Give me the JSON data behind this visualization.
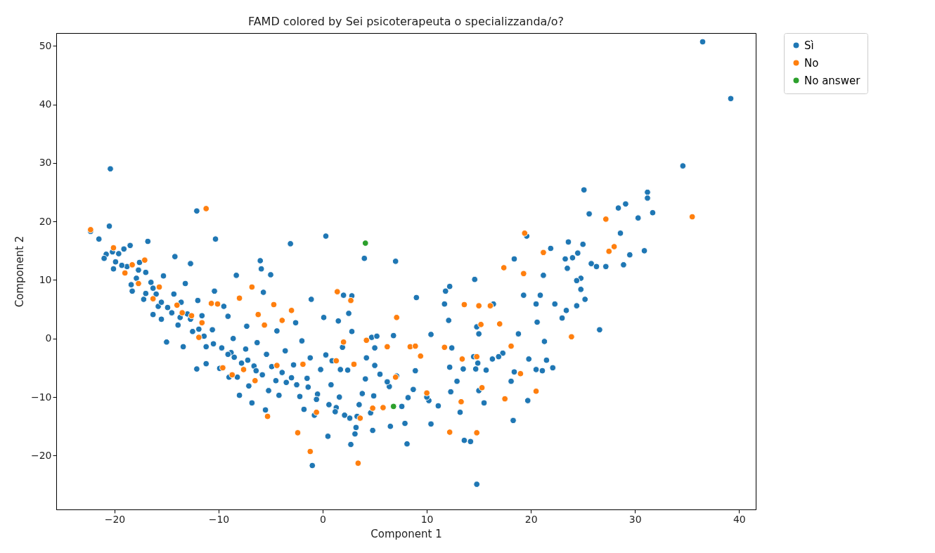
{
  "chart_data": {
    "type": "scatter",
    "title": "FAMD colored by Sei psicoterapeuta o specializzanda/o?",
    "xlabel": "Component 1",
    "ylabel": "Component 2",
    "xlim": [
      -25.6,
      41.6
    ],
    "ylim": [
      -29.2,
      52.2
    ],
    "xticks": [
      -20,
      -10,
      0,
      10,
      20,
      30,
      40
    ],
    "yticks": [
      -20,
      -10,
      0,
      10,
      20,
      30,
      40,
      50
    ],
    "grid": false,
    "legend": "top right",
    "marker": "circle",
    "series": [
      {
        "name": "Sì",
        "color": "#1f77b4",
        "x": [
          36.5,
          39.2,
          34.6,
          -20.4,
          31.7,
          31.2,
          31.2,
          30.3,
          29.5,
          29.1,
          28.4,
          28.6,
          28.9,
          30.9,
          25.1,
          25.6,
          25,
          25.8,
          26.3,
          26.6,
          27.2,
          24.5,
          24,
          23.6,
          23.5,
          24.8,
          23.3,
          24.4,
          24.8,
          25.2,
          24.4,
          23.4,
          23,
          22.3,
          21.9,
          21.2,
          20.9,
          20.5,
          20.6,
          21.3,
          21.5,
          20.5,
          22.1,
          21.1,
          19.8,
          19.6,
          18.4,
          18.8,
          18.4,
          19.3,
          19.7,
          18.1,
          18.3,
          17.3,
          16.4,
          16.9,
          16.3,
          15.7,
          15,
          15.5,
          14.8,
          14.6,
          14.8,
          15,
          14.5,
          14.9,
          14.7,
          14.2,
          13.6,
          13.5,
          12.9,
          13.2,
          12.2,
          11.8,
          11.7,
          12.1,
          12.4,
          12.2,
          12.3,
          11.1,
          10.2,
          10.4,
          10,
          10.4,
          9,
          8.9,
          8.7,
          8.2,
          8.1,
          7.9,
          7.6,
          7.1,
          7,
          6.8,
          6.5,
          6.4,
          6.2,
          5.5,
          5,
          5,
          4.9,
          4.6,
          4.8,
          4.7,
          5.2,
          4,
          4.2,
          4.1,
          3.8,
          3.5,
          3.3,
          3.2,
          3.1,
          2.8,
          2.4,
          2.5,
          2.8,
          2.6,
          2.7,
          2,
          1.9,
          1.7,
          1.6,
          1.3,
          1.5,
          0.3,
          0.9,
          0.8,
          0.3,
          0.5,
          0.1,
          -0.2,
          -0.5,
          -0.8,
          -1,
          -1.1,
          -1.2,
          -1.5,
          -1.8,
          -2,
          -2.2,
          -2.6,
          -2.8,
          -3.1,
          -3,
          -3.6,
          -3.9,
          -4.2,
          -4.4,
          -4.9,
          -5.2,
          -5.5,
          -5,
          -5.7,
          -5.4,
          -5.9,
          -6,
          -6.3,
          -6.6,
          -6.8,
          -7.1,
          -7.3,
          -7.4,
          -7.8,
          -8,
          -8.2,
          -8.3,
          -8.6,
          -8.8,
          -9.1,
          -9,
          -9.5,
          -9.9,
          -10.3,
          -10.4,
          -10.6,
          -11.2,
          -11.2,
          -11.6,
          -12,
          -12.1,
          -12.1,
          -12.7,
          -12.5,
          -13,
          -13.2,
          -13.4,
          -13.6,
          -13.9,
          -14.2,
          -14.3,
          -14.5,
          -15,
          -15.3,
          -15.5,
          -15.8,
          -16,
          -16.3,
          -16.5,
          -16.8,
          -17,
          -17.2,
          -17.6,
          -17.9,
          -18.3,
          -18.5,
          -18.8,
          -19.1,
          -19.6,
          -19.9,
          -20.1,
          -20.5,
          -20.8,
          -21.5,
          -21,
          -22.3,
          -20.2,
          -19.3,
          -18.4,
          -17.7,
          -17,
          -16.3,
          -15.5,
          -14.9,
          -13.7,
          -12.7,
          -11.9,
          -11.4,
          -10.5,
          -9.7,
          -9.1,
          -8.5,
          -7.2,
          -6.4,
          -5.8,
          -4.5,
          -3.5,
          -2.5,
          -1.4,
          -0.6,
          0.6,
          1.2,
          2.1
        ],
        "values": [
          50.7,
          41,
          29.5,
          29,
          21.5,
          25,
          24,
          20.6,
          14.3,
          23,
          22.3,
          18,
          12.6,
          15,
          25.4,
          21.3,
          16.1,
          12.8,
          12.3,
          1.5,
          12.3,
          14.6,
          13.8,
          16.5,
          12,
          10.3,
          13.6,
          9.9,
          8.4,
          6.7,
          5.6,
          4.8,
          3.5,
          5.9,
          15.4,
          10.8,
          7.4,
          5.9,
          2.8,
          -0.5,
          -3.7,
          -5.3,
          -5,
          -5.5,
          -3.5,
          17.5,
          13.6,
          0.8,
          -5.7,
          7.4,
          -10.6,
          -7.3,
          -14,
          -2.5,
          5.9,
          -3.1,
          -3.5,
          -5.4,
          -8.9,
          -11,
          -24.9,
          10.1,
          2,
          0.8,
          -3.1,
          -4.2,
          -5.2,
          -17.6,
          -17.4,
          -5.2,
          -7.3,
          -12.6,
          8.9,
          8.1,
          5.9,
          3.1,
          -1.6,
          -4.9,
          -9.1,
          -11.5,
          -10.6,
          0.7,
          -10,
          -14.6,
          7,
          -5.5,
          -8.7,
          -10.1,
          -18,
          -14.5,
          -11.6,
          -6.4,
          13.2,
          0.5,
          -15,
          -8.2,
          -7.4,
          -6.1,
          -1.6,
          -4.6,
          -9.8,
          -12.7,
          -15.7,
          0.2,
          0.4,
          13.7,
          -3.3,
          -6.9,
          -9.4,
          -11.3,
          -13.3,
          -15.2,
          -16.3,
          1.2,
          -5.4,
          4.3,
          7.3,
          -13.6,
          -18.1,
          7.4,
          -1.5,
          -5.3,
          -10,
          -11.8,
          3,
          17.5,
          -3.8,
          -7.9,
          -2.8,
          -16.7,
          3.6,
          -5.3,
          -9.5,
          -13.1,
          -21.7,
          6.7,
          -3.3,
          -6.8,
          -12.1,
          -0.4,
          -9.9,
          2.7,
          -4.5,
          16.2,
          -6.7,
          -2.1,
          -5.8,
          -9.7,
          1.3,
          -4.8,
          -8.9,
          -12.2,
          10.9,
          7.9,
          -2.7,
          11.9,
          13.3,
          -0.7,
          -4.7,
          -11,
          -8.1,
          2.1,
          -1.8,
          -4.2,
          -9.7,
          -6.6,
          10.8,
          0,
          -2.4,
          3.8,
          -6.6,
          5.5,
          -5.1,
          17,
          8.1,
          1.5,
          -1.4,
          -4.3,
          3.9,
          6.5,
          21.8,
          -5.2,
          12.8,
          1.2,
          4.2,
          9.4,
          -1.4,
          6.2,
          2.3,
          14,
          7.6,
          4.4,
          -0.6,
          10.7,
          3.3,
          5.5,
          7.6,
          4.1,
          9.6,
          16.6,
          11.3,
          6.7,
          13,
          10.3,
          8.1,
          15.9,
          12.3,
          15.3,
          14.5,
          13.1,
          11.9,
          19.2,
          14.4,
          17,
          13.7,
          18.3,
          14.8,
          12.5,
          9.2,
          11.7,
          7.7,
          8.6,
          6.2,
          5.3,
          3.6,
          3.3,
          1.6,
          0.4,
          -0.9,
          -1.6,
          -2.7,
          -3.2,
          -3.7,
          -5.5,
          -6.2,
          -7.2,
          -7.5,
          -7.9,
          -8.3,
          -10.4,
          -11.3,
          -12.5,
          -13.1
        ]
      },
      {
        "name": "No",
        "color": "#ff7f0e",
        "x": [
          -22.3,
          -20.1,
          -19,
          -18.3,
          -17.7,
          -17.1,
          -16.3,
          -15.7,
          -14,
          -13.5,
          -12.6,
          -11.9,
          -11.6,
          -11.2,
          -10.7,
          -10.1,
          -9.6,
          -8.7,
          -8,
          -6.8,
          -6.2,
          -5.6,
          -4.7,
          -4.4,
          -3.9,
          -3,
          -2.4,
          -1.9,
          -1.2,
          -0.6,
          1.4,
          1.3,
          2,
          2.7,
          3,
          3.6,
          3.4,
          4.2,
          4.8,
          5.8,
          6.2,
          7.1,
          7,
          8.4,
          8.9,
          9.4,
          10,
          11.7,
          12.2,
          13.4,
          13.6,
          13.3,
          14.8,
          15,
          15.2,
          15.3,
          14.8,
          16.1,
          17,
          17.4,
          17.5,
          18.1,
          19,
          19.3,
          19.4,
          20.5,
          21.2,
          23.9,
          27.2,
          27.5,
          28,
          35.5,
          -5.3,
          -6.5,
          -7.6
        ],
        "values": [
          18.6,
          15.5,
          11.2,
          12.6,
          9.4,
          13.4,
          6.8,
          8.8,
          5.7,
          4.4,
          3.9,
          0.2,
          2.7,
          22.2,
          6,
          5.9,
          -5,
          -6.2,
          6.9,
          8.8,
          4.1,
          2.3,
          5.8,
          -4.6,
          3.1,
          4.8,
          -16.1,
          -4.4,
          -19.3,
          -12.6,
          8,
          -3.8,
          -0.6,
          6.5,
          -4.4,
          -13.6,
          -21.3,
          -0.3,
          -11.9,
          -11.8,
          -1.4,
          3.6,
          -6.6,
          -1.4,
          -1.3,
          -3,
          -9.3,
          -1.5,
          -16,
          -3.5,
          5.8,
          -10.8,
          -3.1,
          5.6,
          2.4,
          -8.4,
          -16.1,
          5.6,
          2.5,
          12.1,
          -10.3,
          -1.3,
          -6,
          11.1,
          18,
          -9,
          14.7,
          0.3,
          20.4,
          14.9,
          15.7,
          20.8,
          -13.3,
          -7.2,
          -5.3
        ]
      },
      {
        "name": "No answer",
        "color": "#2ca02c",
        "x": [
          4.1,
          6.8
        ],
        "values": [
          16.3,
          -11.6
        ]
      }
    ]
  }
}
